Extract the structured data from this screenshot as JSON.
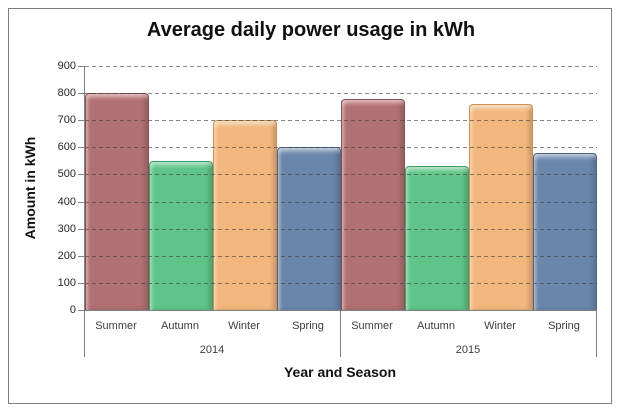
{
  "window": {
    "background": "#ffffff",
    "frame_border_color": "#7f7f7f"
  },
  "chart_data": {
    "type": "bar",
    "title": "Average daily power usage in kWh",
    "xlabel": "Year and Season",
    "ylabel": "Amount in kWh",
    "ylim": [
      0,
      900
    ],
    "ytick_interval": 100,
    "yticks": [
      0,
      100,
      200,
      300,
      400,
      500,
      600,
      700,
      800,
      900
    ],
    "grid": "horizontal-dashed",
    "legend": "none",
    "categories": [
      "Summer",
      "Autumn",
      "Winter",
      "Spring"
    ],
    "groups": [
      {
        "label": "2014",
        "values": [
          800,
          550,
          700,
          600
        ]
      },
      {
        "label": "2015",
        "values": [
          780,
          530,
          760,
          580
        ]
      }
    ],
    "bar_styles": [
      {
        "season": "Summer",
        "fill": "#b17072",
        "border": "#8c5052",
        "highlight": "#d59c9d"
      },
      {
        "season": "Autumn",
        "fill": "#5ec487",
        "border": "#3aa168",
        "highlight": "#93ddb3"
      },
      {
        "season": "Winter",
        "fill": "#f2b77d",
        "border": "#d18f4f",
        "highlight": "#f9d8af"
      },
      {
        "season": "Spring",
        "fill": "#6b86ab",
        "border": "#4a658b",
        "highlight": "#a2b5cf"
      }
    ],
    "axis_color": "#808080",
    "gridline_color": "#404040",
    "tick_label_color": "#262626",
    "category_label_color": "#3d3d3d"
  }
}
